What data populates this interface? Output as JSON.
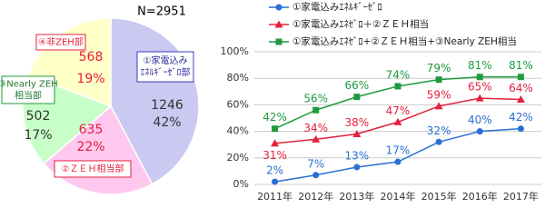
{
  "chart_data": [
    {
      "type": "pie",
      "title": "N=2951",
      "labels": [
        [
          "①家電込み",
          "ｴﾈﾙｷﾞｰｾﾞﾛ部"
        ],
        [
          "②ＺＥＨ相当部"
        ],
        [
          "③Nearly ZEH",
          "相当部"
        ],
        [
          "④非ZEH部"
        ]
      ],
      "values": [
        1246,
        635,
        502,
        568
      ],
      "percent_labels": [
        "42%",
        "22%",
        "17%",
        "19%"
      ],
      "colors": [
        "#c9c9f2",
        "#ffc8ee",
        "#c8ffc8",
        "#ffffc8"
      ]
    },
    {
      "type": "line",
      "categories": [
        "2011年",
        "2012年",
        "2013年",
        "2014年",
        "2015年",
        "2016年",
        "2017年"
      ],
      "ylim": [
        0,
        100
      ],
      "yticks": [
        {
          "value": 0,
          "label": "0%"
        },
        {
          "value": 20,
          "label": "20%"
        },
        {
          "value": 40,
          "label": "40%"
        },
        {
          "value": 60,
          "label": "60%"
        },
        {
          "value": 80,
          "label": "80%"
        },
        {
          "value": 100,
          "label": "100%"
        }
      ],
      "grid": true,
      "series": [
        {
          "name": "①家電込みｴﾈﾙｷﾞｰｾﾞﾛ",
          "color": "#2a6fd6",
          "marker": "circle",
          "values": [
            2,
            7,
            13,
            17,
            32,
            40,
            42
          ],
          "value_labels": [
            "2%",
            "7%",
            "13%",
            "17%",
            "32%",
            "40%",
            "42%"
          ]
        },
        {
          "name": "①家電込みｴﾈｾﾞﾛ＋②ＺＥＨ相当",
          "color": "#e5203c",
          "marker": "triangle",
          "values": [
            31,
            34,
            38,
            47,
            59,
            65,
            64
          ],
          "value_labels": [
            "31%",
            "34%",
            "38%",
            "47%",
            "59%",
            "65%",
            "64%"
          ]
        },
        {
          "name": "①家電込みｴﾈｾﾞﾛ+②ＺＥＨ相当+③Nearly ZEH相当",
          "color": "#1f9a3e",
          "marker": "square",
          "values": [
            42,
            56,
            66,
            74,
            79,
            81,
            81
          ],
          "value_labels": [
            "42%",
            "56%",
            "66%",
            "74%",
            "79%",
            "81%",
            "81%"
          ]
        }
      ]
    }
  ]
}
